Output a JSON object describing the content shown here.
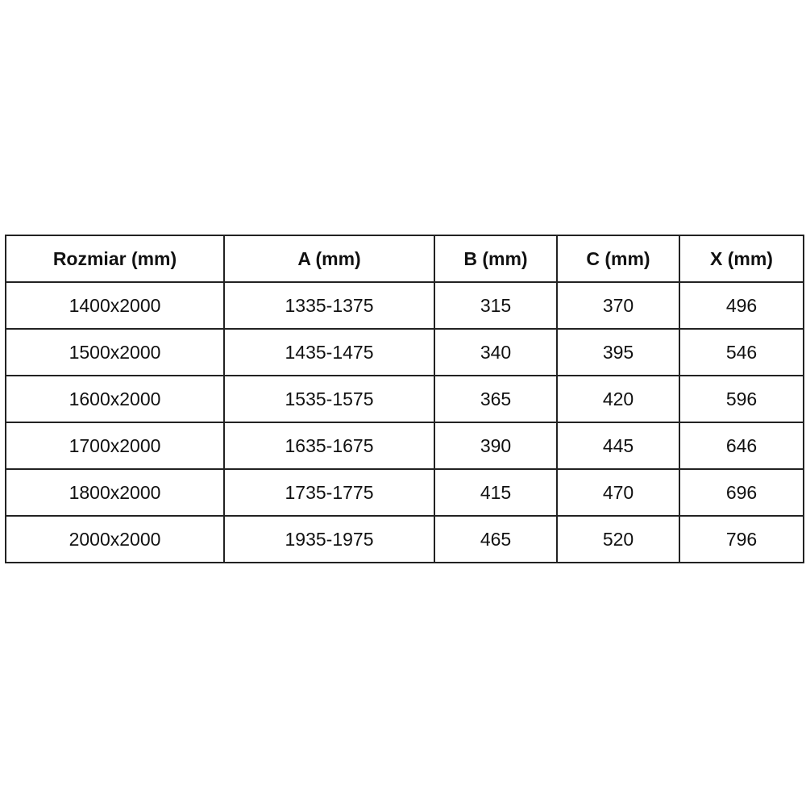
{
  "table": {
    "headers": [
      "Rozmiar (mm)",
      "A (mm)",
      "B (mm)",
      "C (mm)",
      "X (mm)"
    ],
    "rows": [
      [
        "1400x2000",
        "1335-1375",
        "315",
        "370",
        "496"
      ],
      [
        "1500x2000",
        "1435-1475",
        "340",
        "395",
        "546"
      ],
      [
        "1600x2000",
        "1535-1575",
        "365",
        "420",
        "596"
      ],
      [
        "1700x2000",
        "1635-1675",
        "390",
        "445",
        "646"
      ],
      [
        "1800x2000",
        "1735-1775",
        "415",
        "470",
        "696"
      ],
      [
        "2000x2000",
        "1935-1975",
        "465",
        "520",
        "796"
      ]
    ]
  }
}
